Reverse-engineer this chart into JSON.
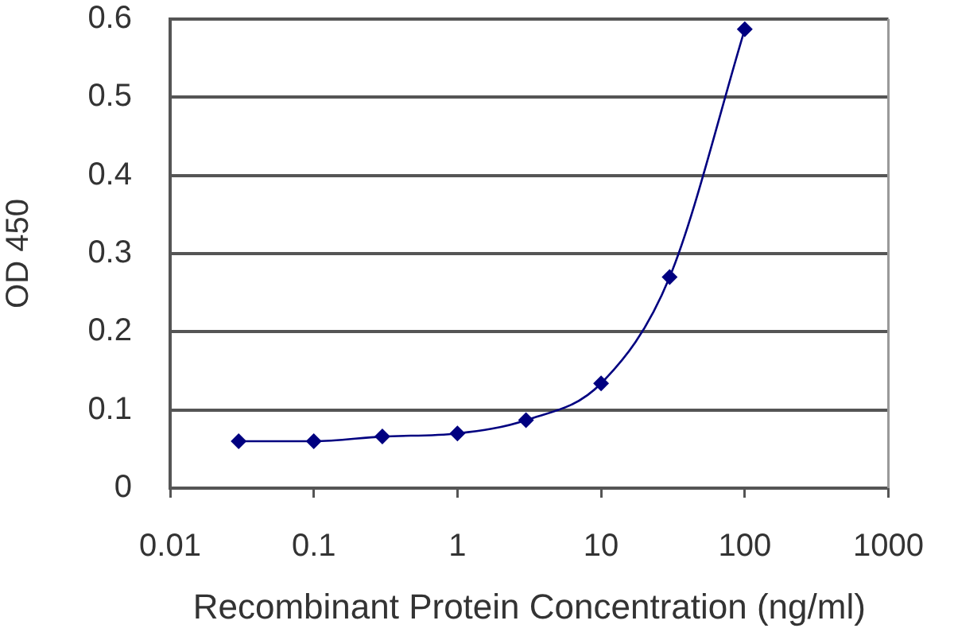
{
  "chart_data": {
    "type": "line",
    "xlabel": "Recombinant Protein Concentration (ng/ml)",
    "ylabel": "OD 450",
    "x": [
      0.03,
      0.1,
      0.3,
      1,
      3,
      10,
      30,
      100
    ],
    "values": [
      0.06,
      0.06,
      0.066,
      0.07,
      0.087,
      0.134,
      0.27,
      0.587
    ],
    "color": "#000080",
    "marker": "diamond",
    "line_style": "solid",
    "log": "x",
    "xlim": [
      0.01,
      1000
    ],
    "xticks": [
      0.01,
      0.1,
      1,
      10,
      100,
      1000
    ],
    "ylim": [
      0,
      0.6
    ],
    "yticks": [
      0,
      0.1,
      0.2,
      0.3,
      0.4,
      0.5,
      0.6
    ],
    "grid": "y",
    "legend": false
  }
}
